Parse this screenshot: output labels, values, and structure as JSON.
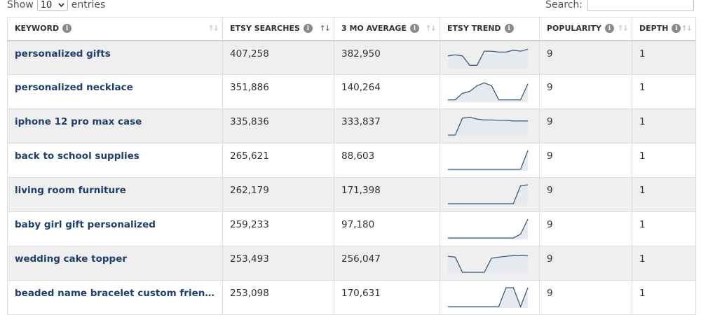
{
  "controls": {
    "show_label": "Show",
    "entries_value": "10",
    "entries_label": "entries",
    "search_label": "Search:",
    "search_value": ""
  },
  "columns": {
    "keyword": "KEYWORD",
    "searches": "ETSY SEARCHES",
    "average": "3 MO AVERAGE",
    "trend": "ETSY TREND",
    "popularity": "POPULARITY",
    "depth": "DEPTH"
  },
  "rows": [
    {
      "keyword": "personalized gifts",
      "searches": "407,258",
      "average": "382,950",
      "popularity": "9",
      "depth": "1",
      "trend": [
        0.6,
        0.65,
        0.6,
        0.1,
        0.1,
        0.85,
        0.85,
        0.8,
        0.8,
        0.9,
        0.85,
        0.95
      ]
    },
    {
      "keyword": "personalized necklace",
      "searches": "351,886",
      "average": "140,264",
      "popularity": "9",
      "depth": "1",
      "trend": [
        0.05,
        0.05,
        0.4,
        0.5,
        0.8,
        0.95,
        0.8,
        0.05,
        0.05,
        0.05,
        0.05,
        0.9
      ]
    },
    {
      "keyword": "iphone 12 pro max case",
      "searches": "335,836",
      "average": "333,837",
      "popularity": "9",
      "depth": "1",
      "trend": [
        0.0,
        0.0,
        0.9,
        0.95,
        0.85,
        0.8,
        0.8,
        0.78,
        0.78,
        0.75,
        0.75,
        0.75
      ]
    },
    {
      "keyword": "back to school supplies",
      "searches": "265,621",
      "average": "88,603",
      "popularity": "9",
      "depth": "1",
      "trend": [
        0.0,
        0.0,
        0.0,
        0.0,
        0.0,
        0.0,
        0.0,
        0.0,
        0.0,
        0.0,
        0.0,
        1.0
      ]
    },
    {
      "keyword": "living room furniture",
      "searches": "262,179",
      "average": "171,398",
      "popularity": "9",
      "depth": "1",
      "trend": [
        0.0,
        0.0,
        0.0,
        0.0,
        0.0,
        0.0,
        0.0,
        0.0,
        0.0,
        0.0,
        0.95,
        1.0
      ]
    },
    {
      "keyword": "baby girl gift personalized",
      "searches": "259,233",
      "average": "97,180",
      "popularity": "9",
      "depth": "1",
      "trend": [
        0.0,
        0.0,
        0.0,
        0.0,
        0.0,
        0.0,
        0.0,
        0.0,
        0.0,
        0.0,
        0.2,
        1.0
      ]
    },
    {
      "keyword": "wedding cake topper",
      "searches": "253,493",
      "average": "256,047",
      "popularity": "9",
      "depth": "1",
      "trend": [
        0.85,
        0.8,
        0.0,
        0.0,
        0.0,
        0.0,
        0.75,
        0.8,
        0.85,
        0.88,
        0.9,
        0.88
      ]
    },
    {
      "keyword": "beaded name bracelet custom friendship ...",
      "searches": "253,098",
      "average": "170,631",
      "popularity": "9",
      "depth": "1",
      "trend": [
        0.0,
        0.0,
        0.0,
        0.0,
        0.0,
        0.0,
        0.0,
        0.0,
        1.0,
        1.0,
        0.0,
        1.0
      ]
    }
  ],
  "colors": {
    "sparkline_stroke": "#3f5a80",
    "sparkline_fill": "#e6eaee",
    "keyword_link": "#1f3f6e"
  }
}
